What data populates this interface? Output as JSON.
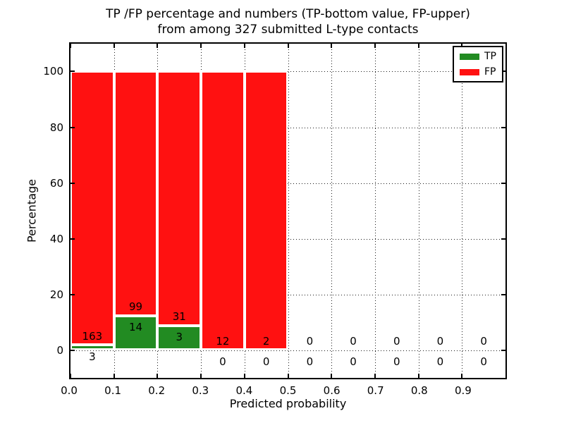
{
  "title": {
    "line1": "TP /FP percentage and numbers (TP-bottom value, FP-upper)",
    "line2": "from among 327 submitted L-type contacts"
  },
  "chart_data": {
    "type": "bar",
    "stacked": true,
    "title": "TP /FP percentage and numbers (TP-bottom value, FP-upper) from among 327 submitted L-type contacts",
    "xlabel": "Predicted probability",
    "ylabel": "Percentage",
    "xlim": [
      0.0,
      1.0
    ],
    "ylim": [
      -10,
      110
    ],
    "grid": "dotted",
    "xticks": [
      0.0,
      0.1,
      0.2,
      0.3,
      0.4,
      0.5,
      0.6,
      0.7,
      0.8,
      0.9
    ],
    "xtick_labels": [
      "0.0",
      "0.1",
      "0.2",
      "0.3",
      "0.4",
      "0.5",
      "0.6",
      "0.7",
      "0.8",
      "0.9"
    ],
    "yticks": [
      0,
      20,
      40,
      60,
      80,
      100
    ],
    "ytick_labels": [
      "0",
      "20",
      "40",
      "60",
      "80",
      "100"
    ],
    "series": [
      {
        "name": "TP",
        "color": "#228b22",
        "counts": [
          3,
          14,
          3,
          0,
          0,
          0,
          0,
          0,
          0,
          0
        ]
      },
      {
        "name": "FP",
        "color": "#ff1111",
        "counts": [
          163,
          99,
          31,
          12,
          2,
          0,
          0,
          0,
          0,
          0
        ]
      }
    ],
    "bins": [
      {
        "x0": 0.0,
        "x1": 0.1,
        "tp": 3,
        "fp": 163,
        "tp_pct": 1.81,
        "fp_pct": 98.19
      },
      {
        "x0": 0.1,
        "x1": 0.2,
        "tp": 14,
        "fp": 99,
        "tp_pct": 12.39,
        "fp_pct": 87.61
      },
      {
        "x0": 0.2,
        "x1": 0.3,
        "tp": 3,
        "fp": 31,
        "tp_pct": 8.82,
        "fp_pct": 91.18
      },
      {
        "x0": 0.3,
        "x1": 0.4,
        "tp": 0,
        "fp": 12,
        "tp_pct": 0,
        "fp_pct": 100
      },
      {
        "x0": 0.4,
        "x1": 0.5,
        "tp": 0,
        "fp": 2,
        "tp_pct": 0,
        "fp_pct": 100
      },
      {
        "x0": 0.5,
        "x1": 0.6,
        "tp": 0,
        "fp": 0,
        "tp_pct": 0,
        "fp_pct": 0
      },
      {
        "x0": 0.6,
        "x1": 0.7,
        "tp": 0,
        "fp": 0,
        "tp_pct": 0,
        "fp_pct": 0
      },
      {
        "x0": 0.7,
        "x1": 0.8,
        "tp": 0,
        "fp": 0,
        "tp_pct": 0,
        "fp_pct": 0
      },
      {
        "x0": 0.8,
        "x1": 0.9,
        "tp": 0,
        "fp": 0,
        "tp_pct": 0,
        "fp_pct": 0
      },
      {
        "x0": 0.9,
        "x1": 1.0,
        "tp": 0,
        "fp": 0,
        "tp_pct": 0,
        "fp_pct": 0
      }
    ],
    "legend": {
      "position": "upper right",
      "entries": [
        {
          "label": "TP",
          "color": "#228b22"
        },
        {
          "label": "FP",
          "color": "#ff1111"
        }
      ]
    }
  }
}
